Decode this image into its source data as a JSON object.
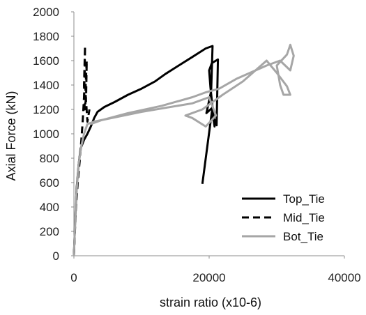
{
  "chart_data": {
    "type": "line",
    "title": "",
    "xlabel": "strain ratio (x10-6)",
    "ylabel": "Axial Force (kN)",
    "xlim": [
      0,
      40000
    ],
    "ylim": [
      0,
      2000
    ],
    "x_ticks": [
      "0",
      "20000",
      "40000"
    ],
    "y_ticks": [
      "0",
      "200",
      "400",
      "600",
      "800",
      "1000",
      "1200",
      "1400",
      "1600",
      "1800",
      "2000"
    ],
    "grid": false,
    "legend_position": "bottom-right",
    "series": [
      {
        "name": "Top_Tie",
        "color": "#000000",
        "dash": "solid",
        "points": [
          [
            0,
            0
          ],
          [
            200,
            300
          ],
          [
            400,
            550
          ],
          [
            700,
            750
          ],
          [
            1000,
            880
          ],
          [
            1500,
            950
          ],
          [
            2000,
            1000
          ],
          [
            2500,
            1060
          ],
          [
            3000,
            1130
          ],
          [
            3500,
            1180
          ],
          [
            4500,
            1220
          ],
          [
            6000,
            1260
          ],
          [
            8000,
            1320
          ],
          [
            10000,
            1370
          ],
          [
            12000,
            1430
          ],
          [
            13500,
            1490
          ],
          [
            15500,
            1560
          ],
          [
            17500,
            1630
          ],
          [
            19500,
            1700
          ],
          [
            20500,
            1720
          ],
          [
            20300,
            1350
          ],
          [
            19600,
            1170
          ],
          [
            20400,
            1210
          ],
          [
            20800,
            1060
          ],
          [
            20200,
            1380
          ],
          [
            20000,
            1520
          ],
          [
            20400,
            1580
          ],
          [
            21300,
            1610
          ],
          [
            21100,
            1070
          ],
          [
            20400,
            1180
          ],
          [
            19000,
            590
          ]
        ]
      },
      {
        "name": "Mid_Tie",
        "color": "#000000",
        "dash": "dashed",
        "points": [
          [
            0,
            0
          ],
          [
            300,
            400
          ],
          [
            600,
            620
          ],
          [
            900,
            800
          ],
          [
            1100,
            950
          ],
          [
            1300,
            1100
          ],
          [
            1500,
            1300
          ],
          [
            1600,
            1500
          ],
          [
            1650,
            1720
          ],
          [
            1500,
            1400
          ],
          [
            1600,
            1200
          ],
          [
            1800,
            1300
          ],
          [
            1900,
            1600
          ],
          [
            1700,
            1350
          ],
          [
            2000,
            1100
          ],
          [
            2300,
            1200
          ]
        ]
      },
      {
        "name": "Bot_Tie",
        "color": "#a6a6a6",
        "dash": "solid",
        "points": [
          [
            0,
            0
          ],
          [
            300,
            450
          ],
          [
            700,
            750
          ],
          [
            1100,
            900
          ],
          [
            1500,
            1000
          ],
          [
            2000,
            1080
          ],
          [
            3000,
            1100
          ],
          [
            10000,
            1180
          ],
          [
            17500,
            1250
          ],
          [
            20000,
            1300
          ],
          [
            21000,
            1150
          ],
          [
            19500,
            1060
          ],
          [
            17500,
            1130
          ],
          [
            16500,
            1150
          ],
          [
            19000,
            1200
          ],
          [
            22000,
            1320
          ],
          [
            25000,
            1430
          ],
          [
            28500,
            1600
          ],
          [
            30000,
            1500
          ],
          [
            31500,
            1390
          ],
          [
            32000,
            1320
          ],
          [
            31000,
            1320
          ],
          [
            30500,
            1400
          ],
          [
            30000,
            1560
          ],
          [
            31500,
            1650
          ],
          [
            32000,
            1730
          ],
          [
            32500,
            1640
          ],
          [
            32000,
            1520
          ],
          [
            30500,
            1600
          ],
          [
            28500,
            1560
          ],
          [
            24000,
            1450
          ],
          [
            21500,
            1370
          ],
          [
            19500,
            1340
          ],
          [
            17500,
            1300
          ],
          [
            13000,
            1230
          ],
          [
            8000,
            1170
          ],
          [
            4000,
            1110
          ],
          [
            2500,
            1080
          ]
        ]
      }
    ]
  }
}
